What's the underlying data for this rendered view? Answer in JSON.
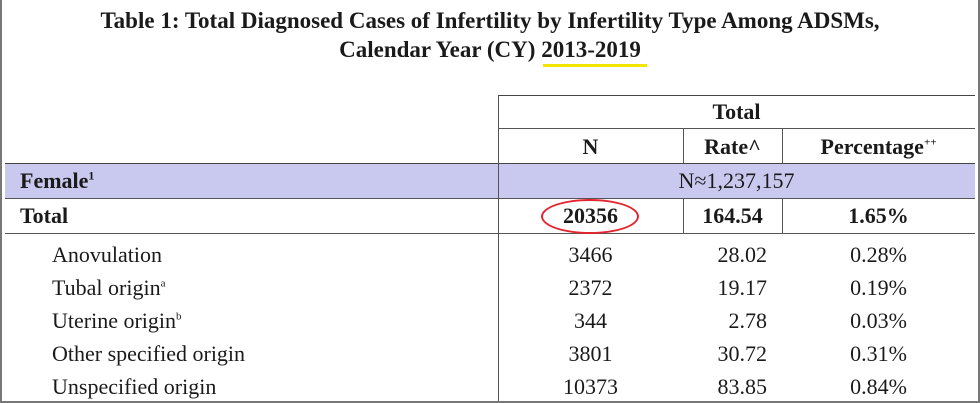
{
  "title": {
    "line1": "Table 1: Total Diagnosed Cases of Infertility by Infertility Type Among ADSMs,",
    "line2_prefix": "Calendar Year (CY) ",
    "line2_highlight": "2013-2019"
  },
  "header": {
    "group": "Total",
    "col_n": "N",
    "col_rate": "Rate^",
    "col_pct": "Percentage",
    "col_pct_sup": "++"
  },
  "female": {
    "label": "Female",
    "label_sup": "1",
    "population": "N≈1,237,157"
  },
  "total": {
    "label": "Total",
    "n": "20356",
    "rate": "164.54",
    "pct": "1.65%"
  },
  "rows": [
    {
      "label": "Anovulation",
      "sup": "",
      "n": "3466",
      "rate": "28.02",
      "pct": "0.28%"
    },
    {
      "label": "Tubal origin",
      "sup": "a",
      "n": "2372",
      "rate": "19.17",
      "pct": "0.19%"
    },
    {
      "label": "Uterine origin",
      "sup": "b",
      "n": "344",
      "rate": "2.78",
      "pct": "0.03%"
    },
    {
      "label": "Other specified origin",
      "sup": "",
      "n": "3801",
      "rate": "30.72",
      "pct": "0.31%"
    },
    {
      "label": "Unspecified origin",
      "sup": "",
      "n": "10373",
      "rate": "83.85",
      "pct": "0.84%"
    }
  ],
  "colors": {
    "female_band": "#c9c8ef",
    "highlight_underline": "#f2e600",
    "annotation_circle": "#e2252f"
  }
}
